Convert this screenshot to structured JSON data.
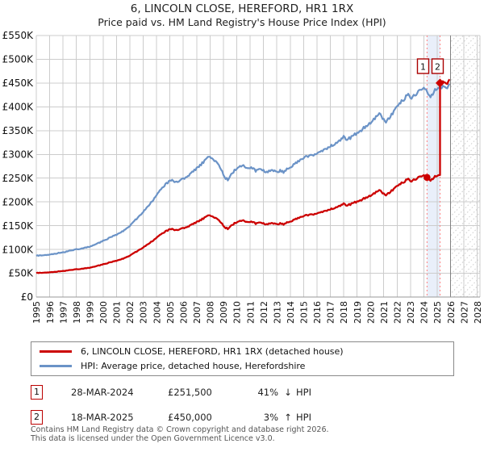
{
  "title": "6, LINCOLN CLOSE, HEREFORD, HR1 1RX",
  "subtitle": "Price paid vs. HM Land Registry's House Price Index (HPI)",
  "chart_data": {
    "type": "line",
    "x_axis": {
      "min": 1995,
      "max": 2028.2,
      "tick_years": [
        "1995",
        "1996",
        "1997",
        "1998",
        "1999",
        "2000",
        "2001",
        "2002",
        "2003",
        "2004",
        "2005",
        "2006",
        "2007",
        "2008",
        "2009",
        "2010",
        "2011",
        "2012",
        "2013",
        "2014",
        "2015",
        "2016",
        "2017",
        "2018",
        "2019",
        "2020",
        "2021",
        "2022",
        "2023",
        "2024",
        "2025",
        "2026",
        "2027",
        "2028"
      ]
    },
    "y_axis": {
      "min": 0,
      "max": 550000,
      "tick_step": 50000,
      "tick_labels": [
        "£0",
        "£50K",
        "£100K",
        "£150K",
        "£200K",
        "£250K",
        "£300K",
        "£350K",
        "£400K",
        "£450K",
        "£500K",
        "£550K"
      ]
    },
    "grid": true,
    "future_shading_start": 2026,
    "series": [
      {
        "name": "6, LINCOLN CLOSE, HEREFORD, HR1 1RX (detached house)",
        "color": "#cc0000",
        "derivation": "HPI series rescaled to pass through each transaction price; vertical step at second sale"
      },
      {
        "name": "HPI: Average price, detached house, Herefordshire",
        "color": "#6b93c7",
        "points": [
          [
            1995.0,
            87000
          ],
          [
            1995.5,
            88000
          ],
          [
            1996.0,
            89500
          ],
          [
            1996.5,
            91500
          ],
          [
            1997.0,
            94000
          ],
          [
            1997.5,
            97000
          ],
          [
            1998.0,
            100000
          ],
          [
            1998.5,
            103000
          ],
          [
            1999.0,
            106500
          ],
          [
            1999.5,
            112000
          ],
          [
            2000.0,
            118000
          ],
          [
            2000.5,
            125000
          ],
          [
            2001.0,
            131500
          ],
          [
            2001.5,
            139000
          ],
          [
            2002.0,
            150000
          ],
          [
            2002.5,
            164000
          ],
          [
            2003.0,
            179000
          ],
          [
            2003.5,
            196000
          ],
          [
            2004.0,
            214000
          ],
          [
            2004.4,
            230000
          ],
          [
            2004.8,
            240000
          ],
          [
            2005.1,
            246000
          ],
          [
            2005.4,
            241000
          ],
          [
            2005.8,
            246000
          ],
          [
            2006.2,
            252000
          ],
          [
            2006.6,
            260000
          ],
          [
            2007.0,
            270000
          ],
          [
            2007.4,
            281000
          ],
          [
            2007.7,
            290000
          ],
          [
            2007.95,
            297000
          ],
          [
            2008.2,
            291000
          ],
          [
            2008.5,
            284000
          ],
          [
            2008.8,
            271000
          ],
          [
            2009.1,
            251000
          ],
          [
            2009.35,
            246000
          ],
          [
            2009.6,
            259000
          ],
          [
            2009.9,
            268000
          ],
          [
            2010.2,
            274000
          ],
          [
            2010.5,
            277000
          ],
          [
            2010.8,
            269000
          ],
          [
            2011.1,
            273000
          ],
          [
            2011.4,
            266000
          ],
          [
            2011.7,
            271000
          ],
          [
            2012.0,
            266000
          ],
          [
            2012.3,
            261000
          ],
          [
            2012.6,
            267000
          ],
          [
            2012.9,
            263000
          ],
          [
            2013.2,
            266000
          ],
          [
            2013.5,
            263000
          ],
          [
            2013.8,
            269000
          ],
          [
            2014.1,
            274000
          ],
          [
            2014.5,
            283000
          ],
          [
            2015.0,
            293000
          ],
          [
            2015.5,
            297000
          ],
          [
            2016.0,
            302000
          ],
          [
            2016.5,
            309000
          ],
          [
            2017.0,
            317000
          ],
          [
            2017.5,
            326000
          ],
          [
            2018.0,
            336000
          ],
          [
            2018.3,
            331000
          ],
          [
            2018.6,
            336000
          ],
          [
            2018.9,
            343000
          ],
          [
            2019.2,
            349000
          ],
          [
            2019.5,
            355000
          ],
          [
            2019.8,
            361000
          ],
          [
            2020.1,
            366000
          ],
          [
            2020.45,
            380000
          ],
          [
            2020.65,
            387000
          ],
          [
            2020.9,
            376000
          ],
          [
            2021.15,
            369000
          ],
          [
            2021.4,
            376000
          ],
          [
            2021.7,
            388000
          ],
          [
            2022.0,
            400000
          ],
          [
            2022.3,
            411000
          ],
          [
            2022.6,
            419000
          ],
          [
            2022.85,
            427000
          ],
          [
            2023.1,
            419000
          ],
          [
            2023.35,
            426000
          ],
          [
            2023.6,
            433000
          ],
          [
            2023.85,
            437000
          ],
          [
            2024.05,
            440000
          ],
          [
            2024.25,
            428000
          ],
          [
            2024.45,
            422000
          ],
          [
            2024.65,
            429000
          ],
          [
            2024.85,
            436000
          ],
          [
            2025.05,
            441000
          ],
          [
            2025.21,
            437000
          ],
          [
            2025.45,
            442000
          ],
          [
            2025.7,
            440000
          ],
          [
            2025.92,
            446000
          ]
        ]
      }
    ],
    "transactions": [
      {
        "label": "1",
        "date": "28-MAR-2024",
        "date_decimal": 2024.238,
        "price": 251500,
        "vs_hpi": "41% below HPI",
        "marker": "circle"
      },
      {
        "label": "2",
        "date": "18-MAR-2025",
        "date_decimal": 2025.211,
        "price": 450000,
        "vs_hpi": "3% above HPI",
        "marker": "diamond"
      }
    ],
    "colors": {
      "grid": "#cccccc",
      "axis": "#999999",
      "txn_dash": "#ff8080",
      "band": "#e9effa",
      "future_line": "#808080",
      "hatch": "#cccccc",
      "marker_box_border": "#aa0000"
    }
  },
  "legend": {
    "items": [
      {
        "label": "6, LINCOLN CLOSE, HEREFORD, HR1 1RX (detached house)",
        "color": "#cc0000",
        "thickness": 3
      },
      {
        "label": "HPI: Average price, detached house, Herefordshire",
        "color": "#6b93c7",
        "thickness": 2.5
      }
    ]
  },
  "transactions_table": {
    "rows": [
      {
        "num": "1",
        "date": "28-MAR-2024",
        "price": "£251,500",
        "pct": "41%",
        "dir": "↓",
        "ref": "HPI"
      },
      {
        "num": "2",
        "date": "18-MAR-2025",
        "price": "£450,000",
        "pct": "3%",
        "dir": "↑",
        "ref": "HPI"
      }
    ]
  },
  "footer": {
    "line1": "Contains HM Land Registry data © Crown copyright and database right 2026.",
    "line2": "This data is licensed under the Open Government Licence v3.0."
  }
}
